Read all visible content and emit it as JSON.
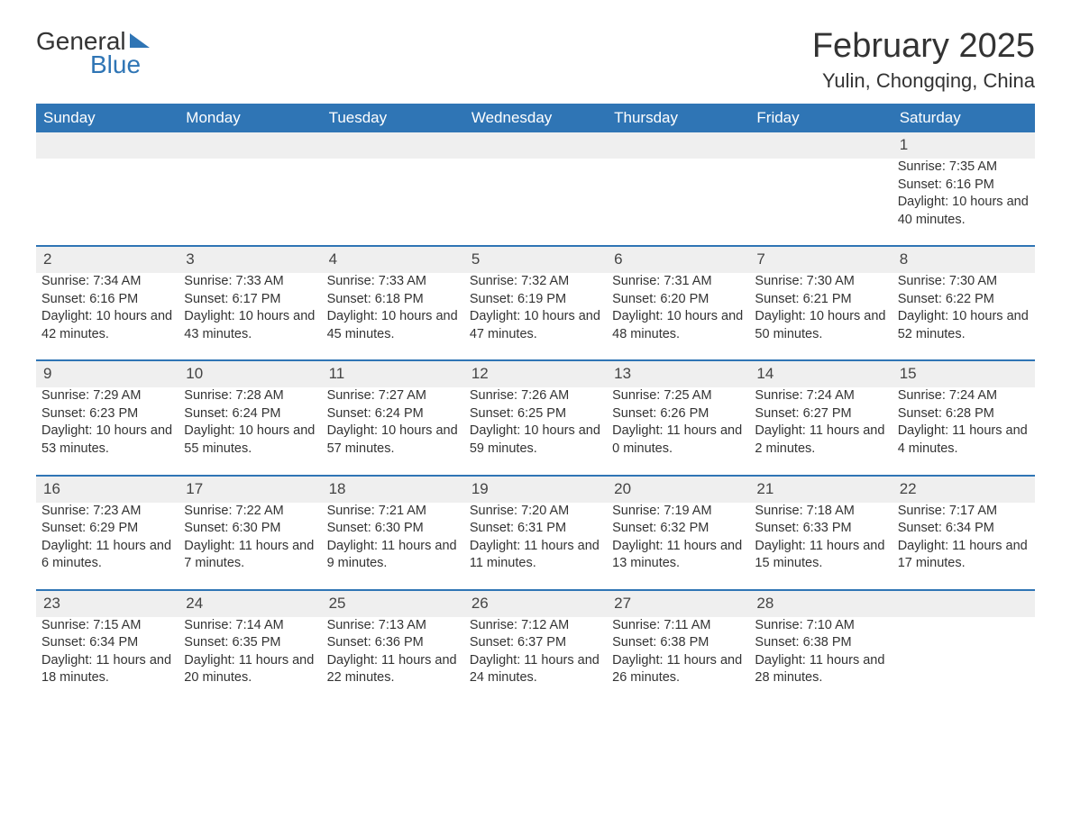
{
  "logo": {
    "text1": "General",
    "text2": "Blue"
  },
  "title": "February 2025",
  "subtitle": "Yulin, Chongqing, China",
  "colors": {
    "header_bg": "#2f75b5",
    "header_text": "#ffffff",
    "daynum_bg": "#efefef",
    "border_top": "#2f75b5",
    "body_text": "#333333",
    "page_bg": "#ffffff"
  },
  "day_headers": [
    "Sunday",
    "Monday",
    "Tuesday",
    "Wednesday",
    "Thursday",
    "Friday",
    "Saturday"
  ],
  "weeks": [
    [
      null,
      null,
      null,
      null,
      null,
      null,
      {
        "n": "1",
        "sunrise": "Sunrise: 7:35 AM",
        "sunset": "Sunset: 6:16 PM",
        "daylight": "Daylight: 10 hours and 40 minutes."
      }
    ],
    [
      {
        "n": "2",
        "sunrise": "Sunrise: 7:34 AM",
        "sunset": "Sunset: 6:16 PM",
        "daylight": "Daylight: 10 hours and 42 minutes."
      },
      {
        "n": "3",
        "sunrise": "Sunrise: 7:33 AM",
        "sunset": "Sunset: 6:17 PM",
        "daylight": "Daylight: 10 hours and 43 minutes."
      },
      {
        "n": "4",
        "sunrise": "Sunrise: 7:33 AM",
        "sunset": "Sunset: 6:18 PM",
        "daylight": "Daylight: 10 hours and 45 minutes."
      },
      {
        "n": "5",
        "sunrise": "Sunrise: 7:32 AM",
        "sunset": "Sunset: 6:19 PM",
        "daylight": "Daylight: 10 hours and 47 minutes."
      },
      {
        "n": "6",
        "sunrise": "Sunrise: 7:31 AM",
        "sunset": "Sunset: 6:20 PM",
        "daylight": "Daylight: 10 hours and 48 minutes."
      },
      {
        "n": "7",
        "sunrise": "Sunrise: 7:30 AM",
        "sunset": "Sunset: 6:21 PM",
        "daylight": "Daylight: 10 hours and 50 minutes."
      },
      {
        "n": "8",
        "sunrise": "Sunrise: 7:30 AM",
        "sunset": "Sunset: 6:22 PM",
        "daylight": "Daylight: 10 hours and 52 minutes."
      }
    ],
    [
      {
        "n": "9",
        "sunrise": "Sunrise: 7:29 AM",
        "sunset": "Sunset: 6:23 PM",
        "daylight": "Daylight: 10 hours and 53 minutes."
      },
      {
        "n": "10",
        "sunrise": "Sunrise: 7:28 AM",
        "sunset": "Sunset: 6:24 PM",
        "daylight": "Daylight: 10 hours and 55 minutes."
      },
      {
        "n": "11",
        "sunrise": "Sunrise: 7:27 AM",
        "sunset": "Sunset: 6:24 PM",
        "daylight": "Daylight: 10 hours and 57 minutes."
      },
      {
        "n": "12",
        "sunrise": "Sunrise: 7:26 AM",
        "sunset": "Sunset: 6:25 PM",
        "daylight": "Daylight: 10 hours and 59 minutes."
      },
      {
        "n": "13",
        "sunrise": "Sunrise: 7:25 AM",
        "sunset": "Sunset: 6:26 PM",
        "daylight": "Daylight: 11 hours and 0 minutes."
      },
      {
        "n": "14",
        "sunrise": "Sunrise: 7:24 AM",
        "sunset": "Sunset: 6:27 PM",
        "daylight": "Daylight: 11 hours and 2 minutes."
      },
      {
        "n": "15",
        "sunrise": "Sunrise: 7:24 AM",
        "sunset": "Sunset: 6:28 PM",
        "daylight": "Daylight: 11 hours and 4 minutes."
      }
    ],
    [
      {
        "n": "16",
        "sunrise": "Sunrise: 7:23 AM",
        "sunset": "Sunset: 6:29 PM",
        "daylight": "Daylight: 11 hours and 6 minutes."
      },
      {
        "n": "17",
        "sunrise": "Sunrise: 7:22 AM",
        "sunset": "Sunset: 6:30 PM",
        "daylight": "Daylight: 11 hours and 7 minutes."
      },
      {
        "n": "18",
        "sunrise": "Sunrise: 7:21 AM",
        "sunset": "Sunset: 6:30 PM",
        "daylight": "Daylight: 11 hours and 9 minutes."
      },
      {
        "n": "19",
        "sunrise": "Sunrise: 7:20 AM",
        "sunset": "Sunset: 6:31 PM",
        "daylight": "Daylight: 11 hours and 11 minutes."
      },
      {
        "n": "20",
        "sunrise": "Sunrise: 7:19 AM",
        "sunset": "Sunset: 6:32 PM",
        "daylight": "Daylight: 11 hours and 13 minutes."
      },
      {
        "n": "21",
        "sunrise": "Sunrise: 7:18 AM",
        "sunset": "Sunset: 6:33 PM",
        "daylight": "Daylight: 11 hours and 15 minutes."
      },
      {
        "n": "22",
        "sunrise": "Sunrise: 7:17 AM",
        "sunset": "Sunset: 6:34 PM",
        "daylight": "Daylight: 11 hours and 17 minutes."
      }
    ],
    [
      {
        "n": "23",
        "sunrise": "Sunrise: 7:15 AM",
        "sunset": "Sunset: 6:34 PM",
        "daylight": "Daylight: 11 hours and 18 minutes."
      },
      {
        "n": "24",
        "sunrise": "Sunrise: 7:14 AM",
        "sunset": "Sunset: 6:35 PM",
        "daylight": "Daylight: 11 hours and 20 minutes."
      },
      {
        "n": "25",
        "sunrise": "Sunrise: 7:13 AM",
        "sunset": "Sunset: 6:36 PM",
        "daylight": "Daylight: 11 hours and 22 minutes."
      },
      {
        "n": "26",
        "sunrise": "Sunrise: 7:12 AM",
        "sunset": "Sunset: 6:37 PM",
        "daylight": "Daylight: 11 hours and 24 minutes."
      },
      {
        "n": "27",
        "sunrise": "Sunrise: 7:11 AM",
        "sunset": "Sunset: 6:38 PM",
        "daylight": "Daylight: 11 hours and 26 minutes."
      },
      {
        "n": "28",
        "sunrise": "Sunrise: 7:10 AM",
        "sunset": "Sunset: 6:38 PM",
        "daylight": "Daylight: 11 hours and 28 minutes."
      },
      null
    ]
  ]
}
